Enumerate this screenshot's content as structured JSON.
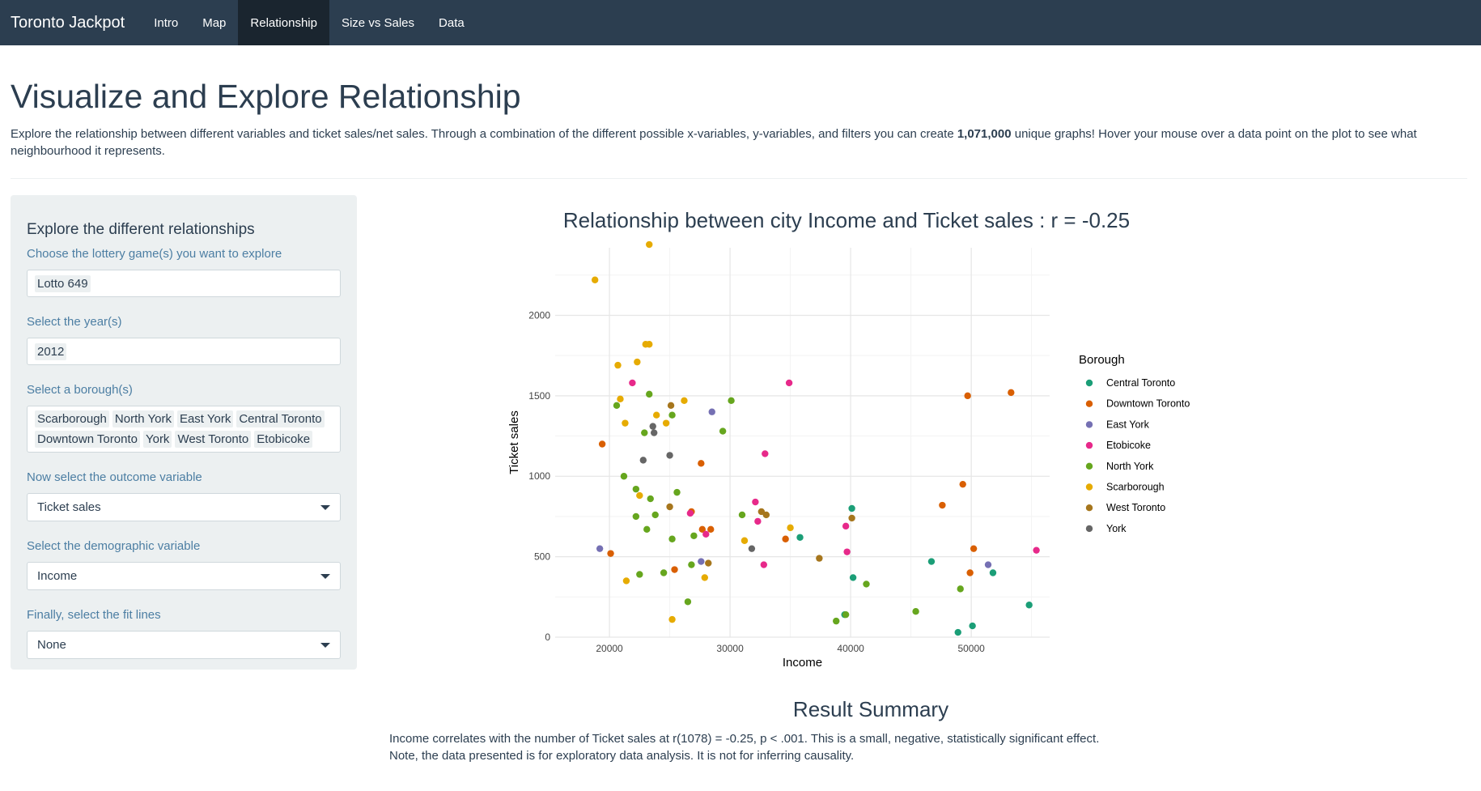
{
  "navbar": {
    "brand": "Toronto Jackpot",
    "items": [
      {
        "label": "Intro",
        "active": false
      },
      {
        "label": "Map",
        "active": false
      },
      {
        "label": "Relationship",
        "active": true
      },
      {
        "label": "Size vs Sales",
        "active": false
      },
      {
        "label": "Data",
        "active": false
      }
    ]
  },
  "page": {
    "title": "Visualize and Explore Relationship",
    "intro_before": "Explore the relationship between different variables and ticket sales/net sales. Through a combination of the different possible x-variables, y-variables, and filters you can create ",
    "intro_bold": "1,071,000",
    "intro_after": " unique graphs! Hover your mouse over a data point on the plot to see what neighbourhood it represents."
  },
  "sidebar": {
    "heading": "Explore the different relationships",
    "game_label": "Choose the lottery game(s) you want to explore",
    "game_values": [
      "Lotto 649"
    ],
    "year_label": "Select the year(s)",
    "year_values": [
      "2012"
    ],
    "borough_label": "Select a borough(s)",
    "borough_values": [
      "Scarborough",
      "North York",
      "East York",
      "Central Toronto",
      "Downtown Toronto",
      "York",
      "West Toronto",
      "Etobicoke"
    ],
    "outcome_label": "Now select the outcome variable",
    "outcome_value": "Ticket sales",
    "demographic_label": "Select the demographic variable",
    "demographic_value": "Income",
    "fit_label": "Finally, select the fit lines",
    "fit_value": "None"
  },
  "summary": {
    "title": "Result Summary",
    "line1": "Income correlates with the number of Ticket sales at r(1078) = -0.25, p < .001. This is a small, negative, statistically significant effect.",
    "line2": "Note, the data presented is for exploratory data analysis. It is not for inferring causality."
  },
  "chart_data": {
    "type": "scatter",
    "title": "Relationship between city Income and Ticket sales : r = -0.25",
    "xlabel": "Income",
    "ylabel": "Ticket sales",
    "xlim": [
      15500,
      56500
    ],
    "ylim": [
      0,
      2420
    ],
    "xticks": [
      20000,
      30000,
      40000,
      50000
    ],
    "yticks": [
      0,
      500,
      1000,
      1500,
      2000
    ],
    "grid": true,
    "legend": {
      "title": "Borough",
      "position": "right"
    },
    "series": [
      {
        "name": "Central Toronto",
        "color": "#1b9e77",
        "points": [
          [
            35800,
            620
          ],
          [
            40100,
            800
          ],
          [
            40200,
            370
          ],
          [
            39500,
            140
          ],
          [
            46700,
            470
          ],
          [
            48900,
            30
          ],
          [
            50100,
            70
          ],
          [
            51800,
            400
          ],
          [
            54800,
            200
          ]
        ]
      },
      {
        "name": "Downtown Toronto",
        "color": "#d95f02",
        "points": [
          [
            19400,
            1200
          ],
          [
            20100,
            520
          ],
          [
            25400,
            420
          ],
          [
            26800,
            780
          ],
          [
            27600,
            1080
          ],
          [
            27700,
            670
          ],
          [
            28400,
            670
          ],
          [
            34600,
            610
          ],
          [
            47600,
            820
          ],
          [
            49300,
            950
          ],
          [
            49700,
            1500
          ],
          [
            49900,
            400
          ],
          [
            50200,
            550
          ],
          [
            53300,
            1520
          ]
        ]
      },
      {
        "name": "East York",
        "color": "#7570b3",
        "points": [
          [
            19200,
            550
          ],
          [
            28500,
            1400
          ],
          [
            27600,
            470
          ],
          [
            51400,
            450
          ]
        ]
      },
      {
        "name": "Etobicoke",
        "color": "#e7298a",
        "points": [
          [
            21900,
            1580
          ],
          [
            26700,
            770
          ],
          [
            28000,
            640
          ],
          [
            32100,
            840
          ],
          [
            32300,
            720
          ],
          [
            32900,
            1140
          ],
          [
            32800,
            450
          ],
          [
            34900,
            1580
          ],
          [
            39600,
            690
          ],
          [
            39700,
            530
          ],
          [
            55400,
            540
          ]
        ]
      },
      {
        "name": "North York",
        "color": "#66a61e",
        "points": [
          [
            20600,
            1440
          ],
          [
            21200,
            1000
          ],
          [
            22200,
            920
          ],
          [
            22200,
            750
          ],
          [
            22500,
            390
          ],
          [
            22900,
            1270
          ],
          [
            23100,
            670
          ],
          [
            23300,
            1510
          ],
          [
            23400,
            860
          ],
          [
            23800,
            760
          ],
          [
            24500,
            400
          ],
          [
            25200,
            1380
          ],
          [
            25200,
            610
          ],
          [
            25600,
            900
          ],
          [
            26500,
            220
          ],
          [
            26800,
            450
          ],
          [
            27000,
            630
          ],
          [
            30100,
            1470
          ],
          [
            29400,
            1280
          ],
          [
            31000,
            760
          ],
          [
            38800,
            100
          ],
          [
            39600,
            140
          ],
          [
            41300,
            330
          ],
          [
            45400,
            160
          ],
          [
            49100,
            300
          ]
        ]
      },
      {
        "name": "Scarborough",
        "color": "#e6ab02",
        "points": [
          [
            18800,
            2220
          ],
          [
            20700,
            1690
          ],
          [
            20900,
            1480
          ],
          [
            21300,
            1330
          ],
          [
            21400,
            350
          ],
          [
            22300,
            1710
          ],
          [
            22500,
            880
          ],
          [
            23000,
            1820
          ],
          [
            23300,
            1820
          ],
          [
            23300,
            2440
          ],
          [
            23900,
            1380
          ],
          [
            24700,
            1330
          ],
          [
            25200,
            110
          ],
          [
            26200,
            1470
          ],
          [
            27900,
            370
          ],
          [
            31200,
            600
          ],
          [
            35000,
            680
          ]
        ]
      },
      {
        "name": "West Toronto",
        "color": "#a6761d",
        "points": [
          [
            25000,
            810
          ],
          [
            25100,
            1440
          ],
          [
            28200,
            460
          ],
          [
            32600,
            780
          ],
          [
            33000,
            760
          ],
          [
            37400,
            490
          ],
          [
            40100,
            740
          ]
        ]
      },
      {
        "name": "York",
        "color": "#666666",
        "points": [
          [
            22800,
            1100
          ],
          [
            23600,
            1310
          ],
          [
            23700,
            1270
          ],
          [
            25000,
            1130
          ],
          [
            31800,
            550
          ]
        ]
      }
    ]
  }
}
